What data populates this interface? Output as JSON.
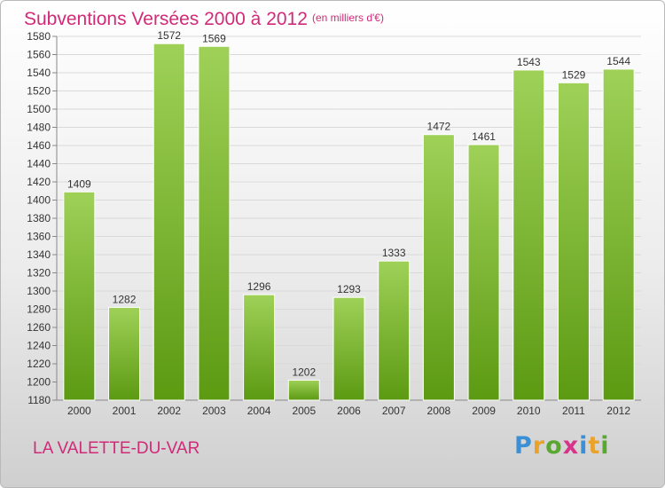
{
  "header": {
    "title": "Subventions Versées 2000 à 2012",
    "unit": "(en milliers d'€)"
  },
  "footer": {
    "commune": "LA VALETTE-DU-VAR",
    "logo": "Proxiti",
    "logo_colors": [
      "#3a8fd6",
      "#e9a22a",
      "#5aa832",
      "#d6338a",
      "#3a8fd6",
      "#e9a22a",
      "#5aa832"
    ]
  },
  "chart_data": {
    "type": "bar",
    "title": "Subventions Versées 2000 à 2012",
    "subtitle": "(en milliers d'€)",
    "categories": [
      "2000",
      "2001",
      "2002",
      "2003",
      "2004",
      "2005",
      "2006",
      "2007",
      "2008",
      "2009",
      "2010",
      "2011",
      "2012"
    ],
    "values": [
      1409,
      1282,
      1572,
      1569,
      1296,
      1202,
      1293,
      1333,
      1472,
      1461,
      1543,
      1529,
      1544
    ],
    "ylim": [
      1180,
      1580
    ],
    "ytick_step": 20,
    "grid": true,
    "bar_color_top": "#9fd158",
    "bar_color_bottom": "#5c9a12",
    "grid_color": "#d9d9d9"
  }
}
